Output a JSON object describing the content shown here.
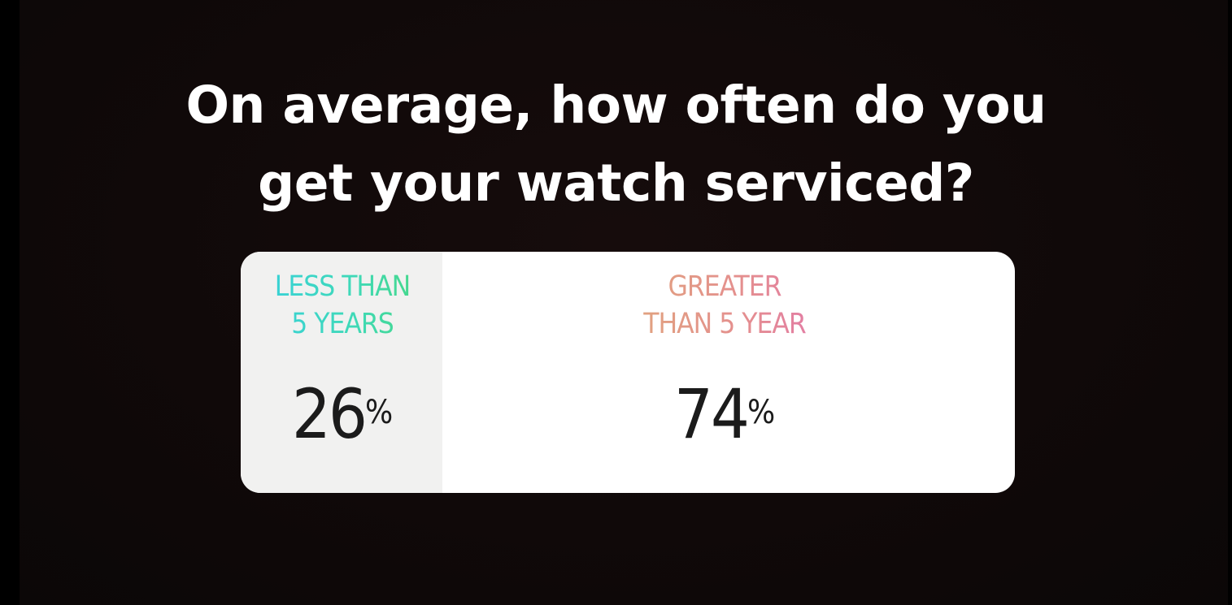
{
  "question": {
    "line1": "On average, how often do you",
    "line2": "get your watch serviced?"
  },
  "poll": {
    "options": [
      {
        "label_line1": "LESS THAN",
        "label_line2": "5 YEARS",
        "percent": "26",
        "percent_sign": "%",
        "share": 0.26
      },
      {
        "label_line1": "GREATER",
        "label_line2": "THAN 5 YEAR",
        "percent": "74",
        "percent_sign": "%",
        "share": 0.74
      }
    ]
  },
  "colors": {
    "background": "#0b0707",
    "question_text": "#ffffff",
    "card": "#ffffff",
    "share_fill": "#f1f1f0",
    "percent_text": "#1b1b1b",
    "option1_gradient": [
      "#36cfe0",
      "#49d877"
    ],
    "option2_gradient": [
      "#dfae76",
      "#e26eb7"
    ]
  }
}
